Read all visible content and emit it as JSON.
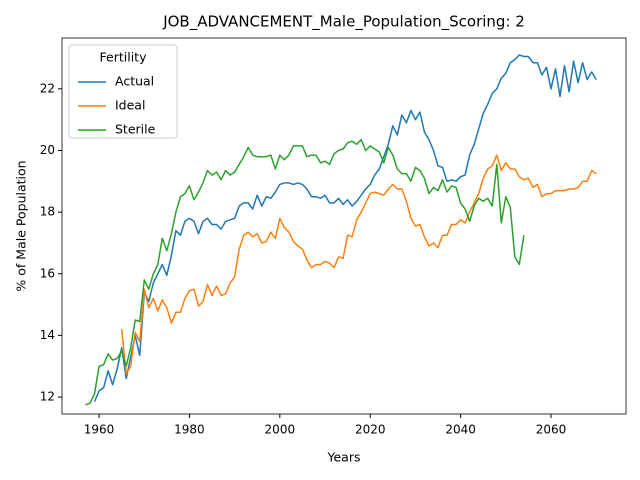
{
  "chart_data": {
    "type": "line",
    "title": "JOB_ADVANCEMENT_Male_Population_Scoring: 2",
    "x_label": "Years",
    "y_label": "% of Male Population",
    "legend_title": "Fertility",
    "legend": "upper left",
    "xlim": [
      1951.8,
      2076.6
    ],
    "ylim": [
      11.45,
      23.65
    ],
    "xticks": [
      1960,
      1980,
      2000,
      2020,
      2040,
      2060
    ],
    "yticks": [
      12,
      14,
      16,
      18,
      20,
      22
    ],
    "x": [
      1957,
      1958,
      1959,
      1960,
      1961,
      1962,
      1963,
      1964,
      1965,
      1966,
      1967,
      1968,
      1969,
      1970,
      1971,
      1972,
      1973,
      1974,
      1975,
      1976,
      1977,
      1978,
      1979,
      1980,
      1981,
      1982,
      1983,
      1984,
      1985,
      1986,
      1987,
      1988,
      1989,
      1990,
      1991,
      1992,
      1993,
      1994,
      1995,
      1996,
      1997,
      1998,
      1999,
      2000,
      2001,
      2002,
      2003,
      2004,
      2005,
      2006,
      2007,
      2008,
      2009,
      2010,
      2011,
      2012,
      2013,
      2014,
      2015,
      2016,
      2017,
      2018,
      2019,
      2020,
      2021,
      2022,
      2023,
      2024,
      2025,
      2026,
      2027,
      2028,
      2029,
      2030,
      2031,
      2032,
      2033,
      2034,
      2035,
      2036,
      2037,
      2038,
      2039,
      2040,
      2041,
      2042,
      2043,
      2044,
      2045,
      2046,
      2047,
      2048,
      2049,
      2050,
      2051,
      2052,
      2053,
      2054,
      2055,
      2056,
      2057,
      2058,
      2059,
      2060,
      2061,
      2062,
      2063,
      2064,
      2065,
      2066,
      2067,
      2068,
      2069,
      2070
    ],
    "series": [
      {
        "name": "Actual",
        "color": "#1f77b4",
        "values": [
          null,
          null,
          11.85,
          12.2,
          12.3,
          12.85,
          12.4,
          12.9,
          13.6,
          12.6,
          13.3,
          14.0,
          13.35,
          15.4,
          15.1,
          15.7,
          16.0,
          16.3,
          15.95,
          16.6,
          17.4,
          17.25,
          17.7,
          17.8,
          17.7,
          17.3,
          17.7,
          17.8,
          17.6,
          17.6,
          17.45,
          17.7,
          17.75,
          17.8,
          18.2,
          18.3,
          18.3,
          18.1,
          18.55,
          18.2,
          18.5,
          18.45,
          18.65,
          18.9,
          18.95,
          18.95,
          18.9,
          18.95,
          18.9,
          18.75,
          18.5,
          18.5,
          18.45,
          18.55,
          18.3,
          18.3,
          18.45,
          18.25,
          18.4,
          18.2,
          18.35,
          18.55,
          18.75,
          18.9,
          19.2,
          19.4,
          19.8,
          20.2,
          20.8,
          20.5,
          21.15,
          20.9,
          21.3,
          21.0,
          21.25,
          20.6,
          20.35,
          20.0,
          19.5,
          19.45,
          19.0,
          19.05,
          19.0,
          19.15,
          19.2,
          19.85,
          20.2,
          20.7,
          21.2,
          21.5,
          21.85,
          22.0,
          22.35,
          22.5,
          22.85,
          22.95,
          23.1,
          23.05,
          23.05,
          22.85,
          22.85,
          22.45,
          22.7,
          22.0,
          22.65,
          21.75,
          22.75,
          21.9,
          22.9,
          22.2,
          22.85,
          22.3,
          22.55,
          22.3
        ]
      },
      {
        "name": "Ideal",
        "color": "#ff7f0e",
        "values": [
          null,
          null,
          null,
          null,
          null,
          null,
          null,
          null,
          14.2,
          12.75,
          13.0,
          14.1,
          13.8,
          15.5,
          14.9,
          15.2,
          14.8,
          15.15,
          14.9,
          14.4,
          14.75,
          14.75,
          15.2,
          15.45,
          15.5,
          14.95,
          15.1,
          15.65,
          15.3,
          15.6,
          15.3,
          15.35,
          15.7,
          15.9,
          16.8,
          17.25,
          17.35,
          17.2,
          17.3,
          17.0,
          17.05,
          17.35,
          17.15,
          17.8,
          17.5,
          17.35,
          17.05,
          16.9,
          16.8,
          16.45,
          16.2,
          16.3,
          16.3,
          16.4,
          16.35,
          16.2,
          16.55,
          16.5,
          17.25,
          17.2,
          17.75,
          18.0,
          18.3,
          18.6,
          18.65,
          18.6,
          18.55,
          18.75,
          18.9,
          18.75,
          18.75,
          18.35,
          17.8,
          17.55,
          17.6,
          17.2,
          16.9,
          17.0,
          16.85,
          17.25,
          17.25,
          17.6,
          17.6,
          17.75,
          17.65,
          18.0,
          18.3,
          18.6,
          19.1,
          19.4,
          19.5,
          19.85,
          19.35,
          19.6,
          19.4,
          19.4,
          19.15,
          19.05,
          19.1,
          18.8,
          18.9,
          18.5,
          18.6,
          18.6,
          18.7,
          18.7,
          18.7,
          18.75,
          18.75,
          18.8,
          19.0,
          19.0,
          19.35,
          19.25
        ]
      },
      {
        "name": "Sterile",
        "color": "#2ca02c",
        "values": [
          11.75,
          11.8,
          12.1,
          13.0,
          13.05,
          13.4,
          13.2,
          13.25,
          13.5,
          13.0,
          13.6,
          14.5,
          14.45,
          15.8,
          15.5,
          16.0,
          16.3,
          17.15,
          16.75,
          17.3,
          18.0,
          18.5,
          18.6,
          18.85,
          18.4,
          18.65,
          18.95,
          19.35,
          19.2,
          19.3,
          19.05,
          19.35,
          19.2,
          19.3,
          19.55,
          19.8,
          20.1,
          19.85,
          19.8,
          19.8,
          19.8,
          19.85,
          19.4,
          19.85,
          19.7,
          19.85,
          20.15,
          20.15,
          20.15,
          19.8,
          19.85,
          19.85,
          19.6,
          19.65,
          19.55,
          19.9,
          20.0,
          20.05,
          20.25,
          20.3,
          20.2,
          20.35,
          20.0,
          20.15,
          20.05,
          19.95,
          19.6,
          20.1,
          19.85,
          19.4,
          19.25,
          19.25,
          19.0,
          19.45,
          19.35,
          19.1,
          18.6,
          18.8,
          18.7,
          19.05,
          18.65,
          18.85,
          18.8,
          18.3,
          18.1,
          17.7,
          18.2,
          18.45,
          18.35,
          18.45,
          18.2,
          19.55,
          17.65,
          18.5,
          18.15,
          16.55,
          16.3,
          17.25,
          null,
          null,
          null,
          null,
          null,
          null,
          null,
          null,
          null,
          null,
          null,
          null,
          null,
          null,
          null,
          null
        ]
      }
    ]
  }
}
